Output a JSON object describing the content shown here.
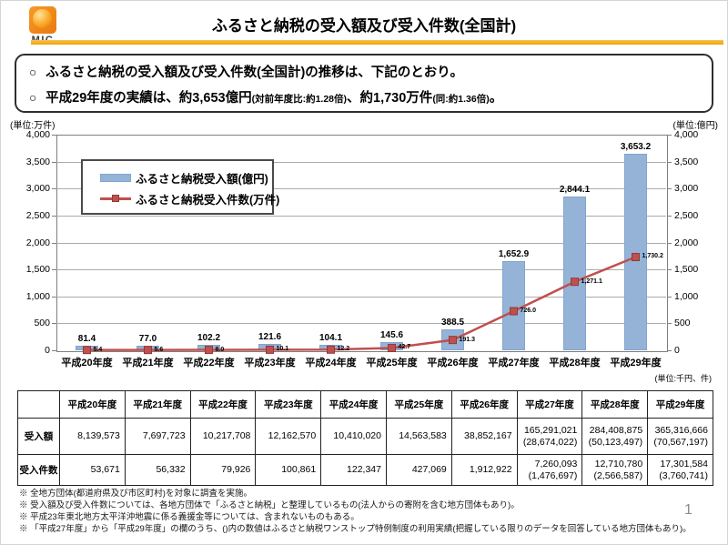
{
  "header": {
    "logo_text": "MIC",
    "title": "ふるさと納税の受入額及び受入件数(全国計)"
  },
  "summary_box": {
    "bullet_marker": "○",
    "bullets": [
      {
        "segments": [
          {
            "text": "ふるさと納税の受入額及び受入件数(全国計)の推移は、下記のとおり。",
            "small": false
          }
        ]
      },
      {
        "segments": [
          {
            "text": "平成29年度の実績は、約3,653億円",
            "small": false
          },
          {
            "text": "(対前年度比:約1.28倍)",
            "small": true
          },
          {
            "text": "、約1,730万件",
            "small": false
          },
          {
            "text": "(同:約1.36倍)",
            "small": true
          },
          {
            "text": "。",
            "small": false
          }
        ]
      }
    ]
  },
  "chart_data": {
    "type": "bar",
    "subtype": "bar+line combo, dual identical axes",
    "categories": [
      "平成20年度",
      "平成21年度",
      "平成22年度",
      "平成23年度",
      "平成24年度",
      "平成25年度",
      "平成26年度",
      "平成27年度",
      "平成28年度",
      "平成29年度"
    ],
    "series": [
      {
        "name": "ふるさと納税受入額(億円)",
        "type": "bar",
        "color": "#95B3D7",
        "values": [
          81.4,
          77.0,
          102.2,
          121.6,
          104.1,
          145.6,
          388.5,
          1652.9,
          2844.1,
          3653.2
        ],
        "labels": [
          "81.4",
          "77.0",
          "102.2",
          "121.6",
          "104.1",
          "145.6",
          "388.5",
          "1,652.9",
          "2,844.1",
          "3,653.2"
        ]
      },
      {
        "name": "ふるさと納税受入件数(万件)",
        "type": "line",
        "color": "#C0504D",
        "values": [
          5.4,
          5.6,
          8.0,
          10.1,
          12.2,
          42.7,
          191.3,
          726.0,
          1271.1,
          1730.2
        ],
        "labels": [
          "5.4",
          "5.6",
          "8.0",
          "10.1",
          "12.2",
          "42.7",
          "191.3",
          "726.0",
          "1,271.1",
          "1,730.2"
        ]
      }
    ],
    "ylim": [
      0,
      4000
    ],
    "ytick_step": 500,
    "ytick_labels": [
      "0",
      "500",
      "1,000",
      "1,500",
      "2,000",
      "2,500",
      "3,000",
      "3,500",
      "4,000"
    ],
    "left_axis_unit": "(単位:万件)",
    "right_axis_unit": "(単位:億円)",
    "footer_unit": "(単位:千円、件)",
    "grid": true,
    "legend_position": "top-left-inside"
  },
  "table": {
    "corner": "",
    "columns": [
      "平成20年度",
      "平成21年度",
      "平成22年度",
      "平成23年度",
      "平成24年度",
      "平成25年度",
      "平成26年度",
      "平成27年度",
      "平成28年度",
      "平成29年度"
    ],
    "rows": [
      {
        "label": "受入額",
        "cells": [
          {
            "main": "8,139,573"
          },
          {
            "main": "7,697,723"
          },
          {
            "main": "10,217,708"
          },
          {
            "main": "12,162,570"
          },
          {
            "main": "10,410,020"
          },
          {
            "main": "14,563,583"
          },
          {
            "main": "38,852,167"
          },
          {
            "main": "165,291,021",
            "sub": "(28,674,022)"
          },
          {
            "main": "284,408,875",
            "sub": "(50,123,497)"
          },
          {
            "main": "365,316,666",
            "sub": "(70,567,197)"
          }
        ]
      },
      {
        "label": "受入件数",
        "cells": [
          {
            "main": "53,671"
          },
          {
            "main": "56,332"
          },
          {
            "main": "79,926"
          },
          {
            "main": "100,861"
          },
          {
            "main": "122,347"
          },
          {
            "main": "427,069"
          },
          {
            "main": "1,912,922"
          },
          {
            "main": "7,260,093",
            "sub": "(1,476,697)"
          },
          {
            "main": "12,710,780",
            "sub": "(2,566,587)"
          },
          {
            "main": "17,301,584",
            "sub": "(3,760,741)"
          }
        ]
      }
    ]
  },
  "footnotes": [
    "※ 全地方団体(都道府県及び市区町村)を対象に調査を実施。",
    "※ 受入額及び受入件数については、各地方団体で「ふるさと納税」と整理しているもの(法人からの寄附を含む地方団体もあり)。",
    "※ 平成23年東北地方太平洋沖地震に係る義援金等については、含まれないものもある。",
    "※ 「平成27年度」から「平成29年度」の欄のうち、()内の数値はふるさと納税ワンストップ特例制度の利用実績(把握している限りのデータを回答している地方団体もあり)。"
  ],
  "page_number": "1",
  "colors": {
    "bar": "#95B3D7",
    "line": "#C0504D",
    "accent_rule": "#EFA106",
    "logo_orange": "#EE8100"
  }
}
